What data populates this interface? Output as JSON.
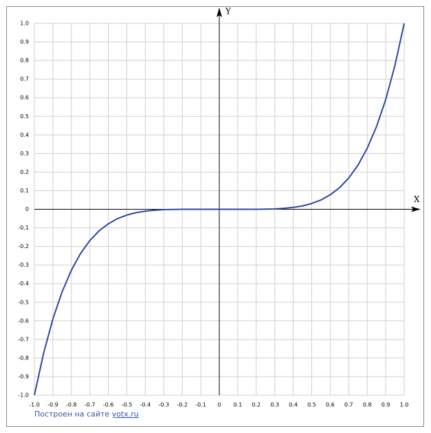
{
  "chart_data": {
    "type": "line",
    "x_label": "X",
    "y_label": "Y",
    "x": [
      -1,
      -0.95,
      -0.9,
      -0.85,
      -0.8,
      -0.75,
      -0.7,
      -0.65,
      -0.6,
      -0.55,
      -0.5,
      -0.45,
      -0.4,
      -0.35,
      -0.3,
      -0.25,
      -0.2,
      -0.15,
      -0.1,
      -0.05,
      0,
      0.05,
      0.1,
      0.15,
      0.2,
      0.25,
      0.3,
      0.35,
      0.4,
      0.45,
      0.5,
      0.55,
      0.6,
      0.65,
      0.7,
      0.75,
      0.8,
      0.85,
      0.9,
      0.95,
      1
    ],
    "series": [
      {
        "color": "#2b46a3",
        "values": [
          -1,
          -0.774,
          -0.59,
          -0.444,
          -0.328,
          -0.237,
          -0.168,
          -0.116,
          -0.078,
          -0.05,
          -0.031,
          -0.018,
          -0.01,
          -0.005,
          -0.002,
          -0.001,
          0,
          0,
          0,
          0,
          0,
          0,
          0,
          0,
          0,
          0.001,
          0.002,
          0.005,
          0.01,
          0.018,
          0.031,
          0.05,
          0.078,
          0.116,
          0.168,
          0.237,
          0.328,
          0.444,
          0.59,
          0.774,
          1
        ]
      }
    ],
    "xlim": [
      -1,
      1
    ],
    "ylim": [
      -1,
      1
    ],
    "xticks": [
      {
        "value": -1,
        "label": "-1.0"
      },
      -0.9,
      -0.8,
      -0.7,
      -0.6,
      -0.5,
      -0.4,
      -0.3,
      -0.2,
      -0.1,
      0,
      0.1,
      0.2,
      0.3,
      0.4,
      0.5,
      0.6,
      0.7,
      0.8,
      0.9,
      {
        "value": 1,
        "label": "1.0"
      }
    ],
    "yticks": [
      {
        "value": -1,
        "label": "-1.0"
      },
      -0.9,
      -0.8,
      -0.7,
      -0.6,
      -0.5,
      -0.4,
      -0.3,
      -0.2,
      -0.1,
      0,
      0.1,
      0.2,
      0.3,
      0.4,
      0.5,
      0.6,
      0.7,
      0.8,
      0.9,
      {
        "value": 1,
        "label": "1.0"
      }
    ],
    "grid": true
  },
  "footer": {
    "text": "Построен на сайте",
    "link": "yotx.ru"
  }
}
